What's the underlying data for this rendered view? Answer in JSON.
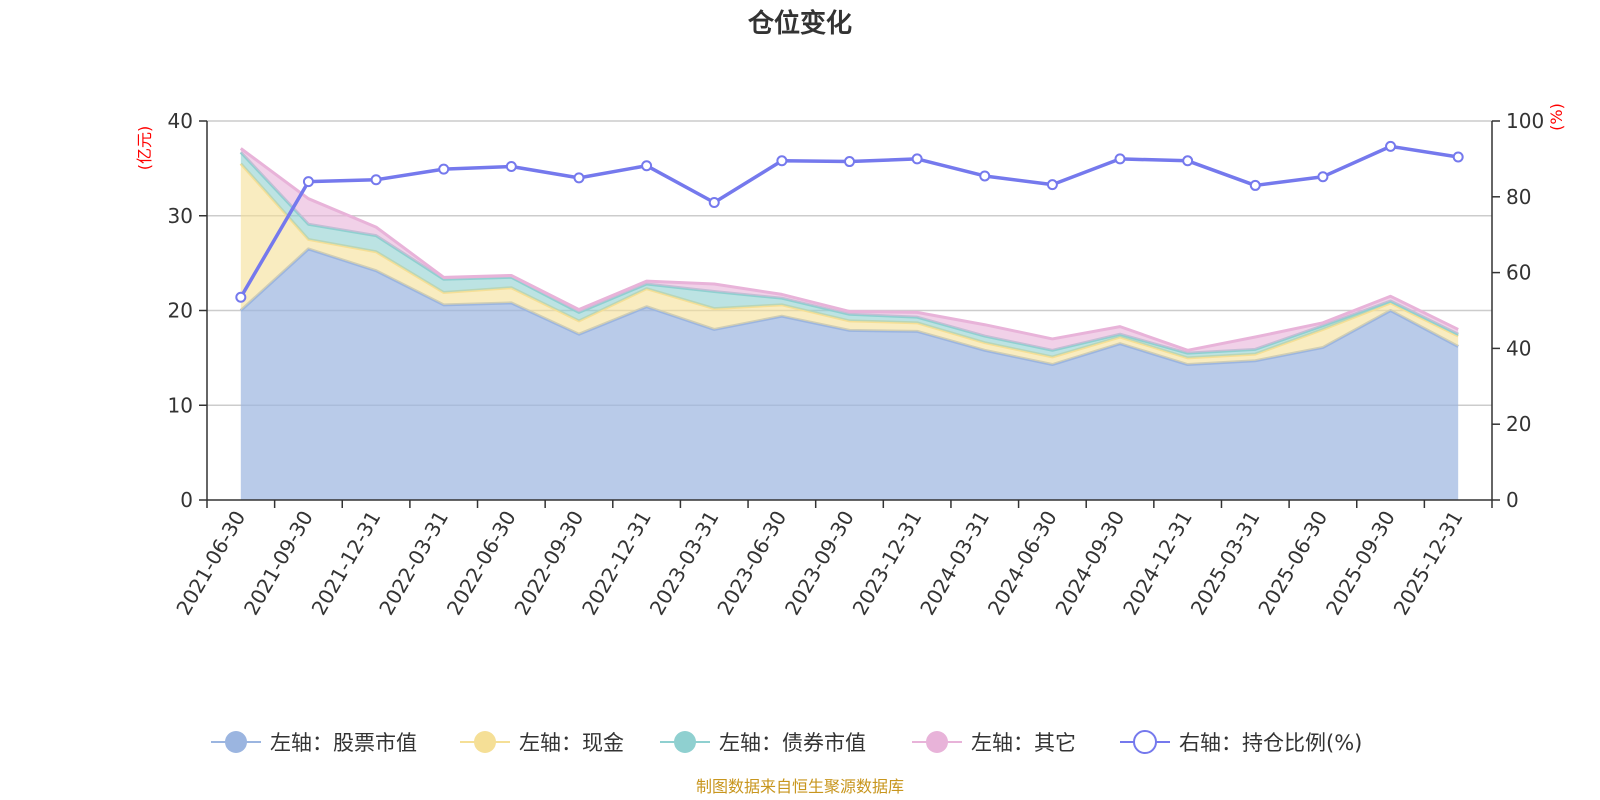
{
  "chart_data": {
    "type": "area",
    "title": "仓位变化",
    "left_axis_unit": "(亿元)",
    "right_axis_unit": "(%)",
    "left_ylim": [
      0,
      40
    ],
    "left_ticks": [
      "0",
      "10",
      "20",
      "30",
      "40"
    ],
    "right_ylim": [
      0,
      100
    ],
    "right_ticks": [
      "0",
      "20",
      "40",
      "60",
      "80",
      "100"
    ],
    "categories": [
      "2021-06-30",
      "2021-09-30",
      "2021-12-31",
      "2022-03-31",
      "2022-06-30",
      "2022-09-30",
      "2022-12-31",
      "2023-03-31",
      "2023-06-30",
      "2023-09-30",
      "2023-12-31",
      "2024-03-31",
      "2024-06-30",
      "2024-09-30",
      "2024-12-31",
      "2025-03-31",
      "2025-06-30",
      "2025-09-30",
      "2025-12-31"
    ],
    "series": [
      {
        "name": "左轴：股票市值",
        "axis": "left",
        "stack": true,
        "color": "#9bb5e0",
        "values": [
          20.0,
          26.5,
          24.2,
          20.6,
          20.8,
          17.5,
          20.4,
          18.0,
          19.4,
          17.9,
          17.8,
          15.8,
          14.3,
          16.5,
          14.3,
          14.7,
          16.1,
          20.0,
          16.2
        ]
      },
      {
        "name": "左轴：现金",
        "axis": "left",
        "stack": true,
        "color": "#f5df96",
        "values": [
          15.5,
          1.0,
          2.0,
          1.3,
          1.6,
          1.4,
          1.9,
          2.2,
          1.2,
          1.0,
          0.9,
          0.8,
          0.8,
          0.7,
          0.7,
          0.7,
          1.9,
          0.8,
          1.1
        ]
      },
      {
        "name": "左轴：债券市值",
        "axis": "left",
        "stack": true,
        "color": "#8fd0d0",
        "values": [
          1.2,
          1.6,
          1.7,
          1.4,
          1.1,
          0.9,
          0.5,
          1.8,
          0.7,
          0.7,
          0.6,
          0.7,
          0.7,
          0.3,
          0.5,
          0.5,
          0.4,
          0.2,
          0.2
        ]
      },
      {
        "name": "左轴：其它",
        "axis": "left",
        "stack": true,
        "color": "#e8b3d9",
        "values": [
          0.4,
          2.7,
          0.9,
          0.2,
          0.2,
          0.3,
          0.3,
          0.8,
          0.4,
          0.3,
          0.5,
          1.2,
          1.2,
          0.8,
          0.3,
          1.3,
          0.3,
          0.5,
          0.5
        ]
      },
      {
        "name": "右轴：持仓比例(%)",
        "axis": "right",
        "stack": false,
        "color": "#7579ed",
        "values": [
          53.5,
          84.0,
          84.5,
          87.3,
          88.0,
          85.0,
          88.2,
          78.5,
          89.5,
          89.3,
          90.0,
          85.5,
          83.2,
          90.0,
          89.5,
          83.0,
          85.3,
          93.3,
          90.5
        ]
      }
    ],
    "grid": true,
    "legend_position": "bottom",
    "source_note": "制图数据来自恒生聚源数据库"
  }
}
